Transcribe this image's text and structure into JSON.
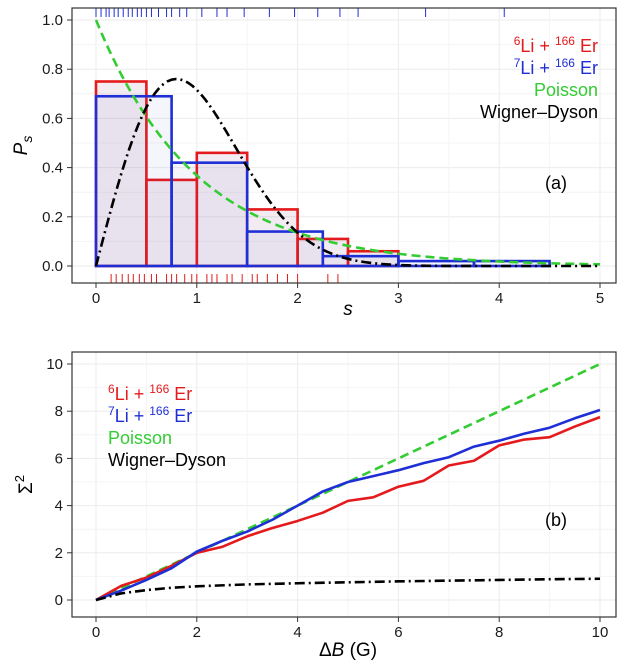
{
  "chart_data": [
    {
      "type": "bar",
      "panel_label": "(a)",
      "xlabel": "s",
      "ylabel": "P",
      "ylabel_sub": "s",
      "xlim": [
        0,
        5
      ],
      "ylim": [
        0,
        1.0
      ],
      "xticks": [
        "0",
        "1",
        "2",
        "3",
        "4",
        "5"
      ],
      "yticks": [
        "0.0",
        "0.2",
        "0.4",
        "0.6",
        "0.8",
        "1.0"
      ],
      "grid": true,
      "legend_position": "top-right",
      "legend": [
        {
          "pre_sup": "6",
          "main": "Li + ",
          "sup": "166",
          "post": " Er",
          "color": "#e41a1c"
        },
        {
          "pre_sup": "7",
          "main": "Li + ",
          "sup": "166",
          "post": " Er",
          "color": "#1f2fd6"
        },
        {
          "pre_sup": "",
          "main": "Poisson",
          "sup": "",
          "post": "",
          "color": "#33cc33"
        },
        {
          "pre_sup": "",
          "main": "Wigner–Dyson",
          "sup": "",
          "post": "",
          "color": "#000000"
        }
      ],
      "series": [
        {
          "name": "6Li+166Er",
          "color": "#e41a1c",
          "bin_edges": [
            0,
            0.5,
            1.0,
            1.5,
            2.0,
            2.5,
            3.0
          ],
          "values": [
            0.75,
            0.35,
            0.46,
            0.23,
            0.11,
            0.06
          ]
        },
        {
          "name": "7Li+166Er",
          "color": "#1f2fd6",
          "bin_edges": [
            0,
            0.75,
            1.5,
            2.25,
            3.0,
            3.75,
            4.5
          ],
          "values": [
            0.69,
            0.42,
            0.14,
            0.04,
            0.02,
            0.02
          ]
        }
      ],
      "curves": [
        {
          "name": "Poisson",
          "function": "exp(-s)",
          "color": "#33cc33",
          "style": "dashed"
        },
        {
          "name": "Wigner-Dyson",
          "function": "(pi/2) s exp(-pi s^2 / 4)",
          "color": "#000000",
          "style": "dashdot"
        }
      ],
      "rug_top_blue": [
        0.0,
        0.05,
        0.1,
        0.13,
        0.18,
        0.22,
        0.27,
        0.32,
        0.36,
        0.41,
        0.45,
        0.5,
        0.55,
        0.62,
        0.7,
        0.75,
        0.83,
        0.9,
        1.05,
        1.2,
        1.3,
        1.47,
        1.72,
        1.97,
        2.2,
        2.42,
        2.6,
        3.27,
        4.05
      ],
      "rug_bottom_red": [
        0.15,
        0.2,
        0.26,
        0.32,
        0.37,
        0.43,
        0.48,
        0.55,
        0.6,
        0.7,
        0.75,
        0.8,
        0.88,
        0.95,
        1.0,
        1.1,
        1.15,
        1.2,
        1.3,
        1.35,
        1.45,
        1.55,
        1.6,
        1.7,
        1.8,
        1.9,
        2.0,
        2.3,
        2.4
      ]
    },
    {
      "type": "line",
      "panel_label": "(b)",
      "xlabel": "ΔB (G)",
      "ylabel": "Σ",
      "ylabel_sup": "2",
      "xlim": [
        0,
        10
      ],
      "ylim": [
        0,
        10
      ],
      "xticks": [
        "0",
        "2",
        "4",
        "6",
        "8",
        "10"
      ],
      "yticks": [
        "0",
        "2",
        "4",
        "6",
        "8",
        "10"
      ],
      "grid": true,
      "legend_position": "top-left",
      "legend": [
        {
          "pre_sup": "6",
          "main": "Li + ",
          "sup": "166",
          "post": " Er",
          "color": "#e41a1c"
        },
        {
          "pre_sup": "7",
          "main": "Li + ",
          "sup": "166",
          "post": " Er",
          "color": "#1f2fd6"
        },
        {
          "pre_sup": "",
          "main": "Poisson",
          "sup": "",
          "post": "",
          "color": "#33cc33"
        },
        {
          "pre_sup": "",
          "main": "Wigner–Dyson",
          "sup": "",
          "post": "",
          "color": "#000000"
        }
      ],
      "series": [
        {
          "name": "6Li+166Er",
          "color": "#e41a1c",
          "style": "solid",
          "x": [
            0,
            0.5,
            1,
            1.5,
            2,
            2.5,
            3,
            3.5,
            4,
            4.5,
            5,
            5.5,
            6,
            6.5,
            7,
            7.5,
            8,
            8.5,
            9,
            9.5,
            10
          ],
          "y": [
            0,
            0.6,
            0.95,
            1.45,
            2.0,
            2.25,
            2.7,
            3.05,
            3.35,
            3.7,
            4.2,
            4.35,
            4.8,
            5.05,
            5.7,
            5.9,
            6.55,
            6.8,
            6.9,
            7.35,
            7.75
          ]
        },
        {
          "name": "7Li+166Er",
          "color": "#1f2fd6",
          "style": "solid",
          "x": [
            0,
            0.5,
            1,
            1.5,
            2,
            2.5,
            3,
            3.5,
            4,
            4.5,
            5,
            5.5,
            6,
            6.5,
            7,
            7.5,
            8,
            8.5,
            9,
            9.5,
            10
          ],
          "y": [
            0,
            0.4,
            0.85,
            1.35,
            2.05,
            2.5,
            2.9,
            3.4,
            4.0,
            4.6,
            5.0,
            5.25,
            5.5,
            5.8,
            6.05,
            6.5,
            6.75,
            7.05,
            7.3,
            7.7,
            8.05
          ]
        },
        {
          "name": "Poisson",
          "color": "#33cc33",
          "style": "dashed",
          "x": [
            0,
            10
          ],
          "y": [
            0,
            10
          ]
        },
        {
          "name": "Wigner-Dyson",
          "color": "#000000",
          "style": "dashdot",
          "x": [
            0,
            0.5,
            1,
            1.5,
            2,
            3,
            4,
            5,
            6,
            7,
            8,
            9,
            10
          ],
          "y": [
            0,
            0.28,
            0.42,
            0.52,
            0.58,
            0.66,
            0.71,
            0.75,
            0.79,
            0.82,
            0.85,
            0.88,
            0.9
          ]
        }
      ]
    }
  ]
}
